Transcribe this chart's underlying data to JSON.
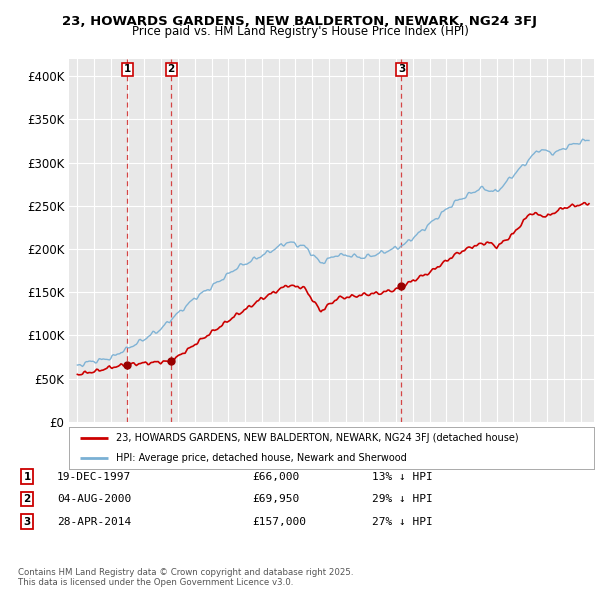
{
  "title_line1": "23, HOWARDS GARDENS, NEW BALDERTON, NEWARK, NG24 3FJ",
  "title_line2": "Price paid vs. HM Land Registry's House Price Index (HPI)",
  "background_color": "#ffffff",
  "plot_bg_color": "#e8e8e8",
  "grid_color": "#ffffff",
  "sale_color": "#cc0000",
  "hpi_color": "#7ab0d4",
  "vline_color": "#cc0000",
  "ylim": [
    0,
    420000
  ],
  "yticks": [
    0,
    50000,
    100000,
    150000,
    200000,
    250000,
    300000,
    350000,
    400000
  ],
  "ytick_labels": [
    "£0",
    "£50K",
    "£100K",
    "£150K",
    "£200K",
    "£250K",
    "£300K",
    "£350K",
    "£400K"
  ],
  "xlim_start": 1994.5,
  "xlim_end": 2025.8,
  "sale_dates_num": [
    1997.97,
    2000.59,
    2014.32
  ],
  "sale_prices": [
    66000,
    69950,
    157000
  ],
  "sale_labels": [
    "1",
    "2",
    "3"
  ],
  "legend_sale_label": "23, HOWARDS GARDENS, NEW BALDERTON, NEWARK, NG24 3FJ (detached house)",
  "legend_hpi_label": "HPI: Average price, detached house, Newark and Sherwood",
  "table_entries": [
    {
      "num": "1",
      "date": "19-DEC-1997",
      "price": "£66,000",
      "pct": "13% ↓ HPI"
    },
    {
      "num": "2",
      "date": "04-AUG-2000",
      "price": "£69,950",
      "pct": "29% ↓ HPI"
    },
    {
      "num": "3",
      "date": "28-APR-2014",
      "price": "£157,000",
      "pct": "27% ↓ HPI"
    }
  ],
  "footnote": "Contains HM Land Registry data © Crown copyright and database right 2025.\nThis data is licensed under the Open Government Licence v3.0."
}
